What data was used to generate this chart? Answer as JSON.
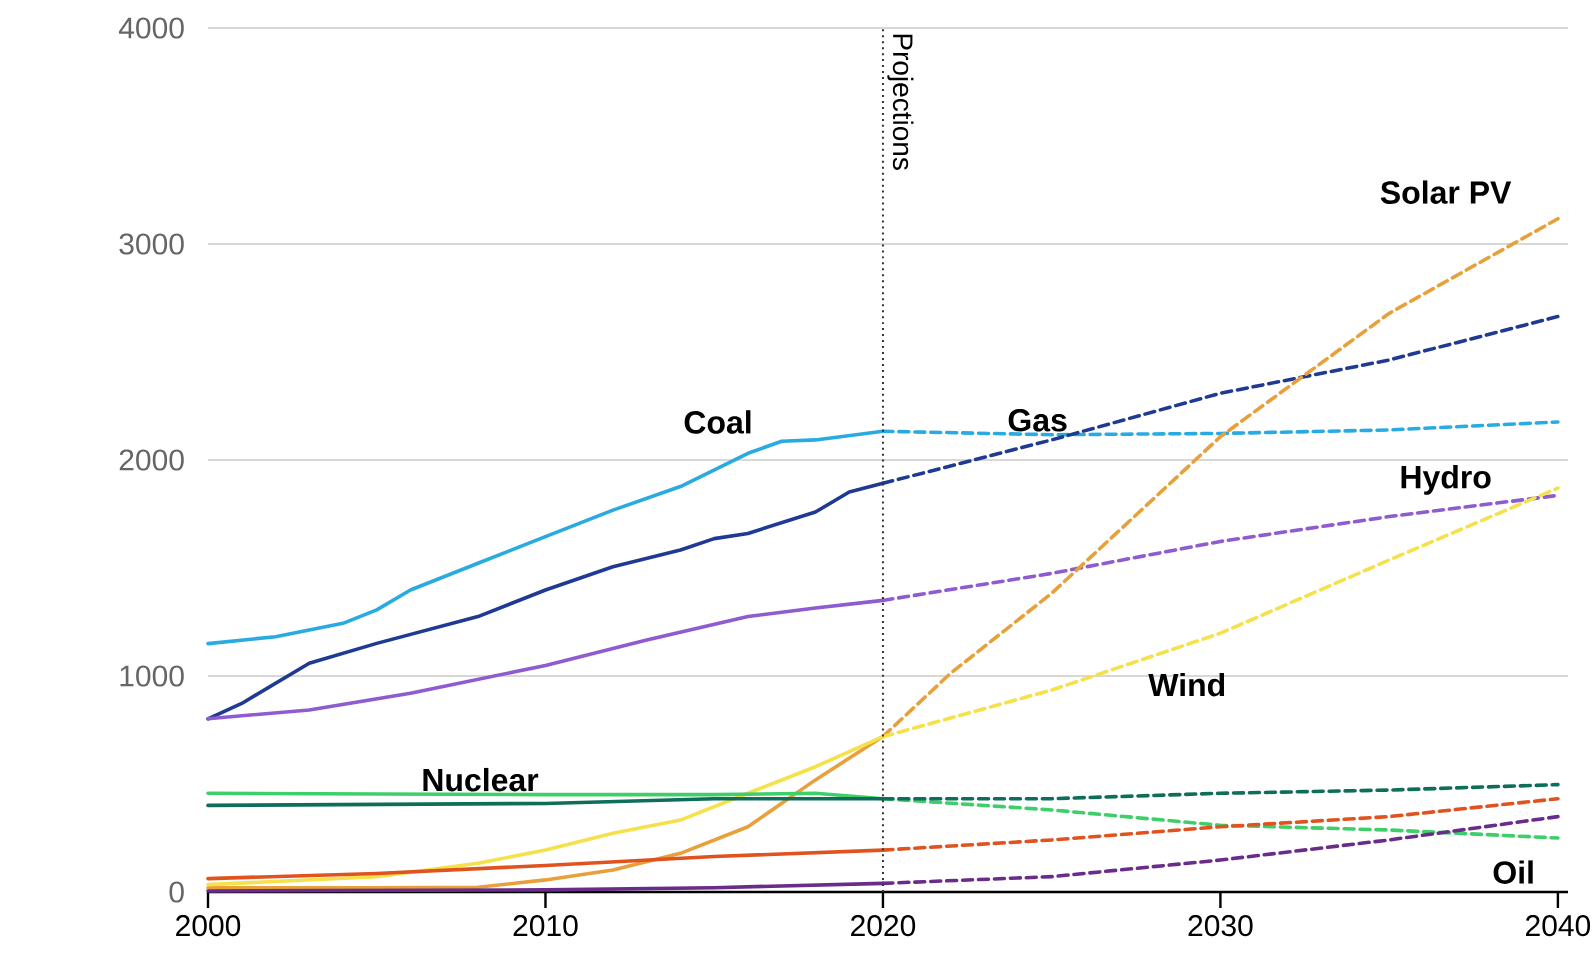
{
  "chart_data": {
    "type": "line",
    "xlim": [
      2000,
      2040.3
    ],
    "ylim": [
      0,
      4000
    ],
    "xticks": [
      2000,
      2010,
      2020,
      2030,
      2040
    ],
    "yticks": [
      0,
      1000,
      2000,
      3000,
      4000
    ],
    "grid": "y",
    "marker": "none",
    "series": [
      {
        "color": "#29abe2",
        "line_style": "solid",
        "x": [
          2000,
          2002,
          2004,
          2005,
          2006,
          2008,
          2010,
          2012,
          2014,
          2016,
          2017,
          2018,
          2020
        ],
        "values": [
          1150,
          1182,
          1244,
          1306,
          1398,
          1522,
          1645,
          1768,
          1877,
          2031,
          2087,
          2093,
          2133
        ]
      },
      {
        "color": "#29abe2",
        "line_style": "dashed",
        "x": [
          2020,
          2025,
          2030,
          2035,
          2040
        ],
        "values": [
          2133,
          2117,
          2123,
          2139,
          2176
        ]
      },
      {
        "color": "#1f3a93",
        "line_style": "solid",
        "x": [
          2000,
          2001,
          2003,
          2005,
          2008,
          2010,
          2012,
          2014,
          2015,
          2016,
          2018,
          2019,
          2020
        ],
        "values": [
          802,
          873,
          1059,
          1151,
          1275,
          1398,
          1506,
          1583,
          1636,
          1660,
          1759,
          1852,
          1892
        ]
      },
      {
        "color": "#1f3a93",
        "line_style": "dashed",
        "x": [
          2020,
          2025,
          2030,
          2035,
          2040
        ],
        "values": [
          1892,
          2093,
          2309,
          2463,
          2664
        ]
      },
      {
        "color": "#8e5bd0",
        "line_style": "solid",
        "x": [
          2000,
          2003,
          2006,
          2010,
          2013,
          2016,
          2018,
          2020
        ],
        "values": [
          802,
          843,
          920,
          1049,
          1167,
          1275,
          1315,
          1350
        ]
      },
      {
        "color": "#8e5bd0",
        "line_style": "dashed",
        "x": [
          2020,
          2025,
          2030,
          2035,
          2040
        ],
        "values": [
          1350,
          1475,
          1623,
          1738,
          1836
        ]
      },
      {
        "color": "#e8a03a",
        "line_style": "solid",
        "x": [
          2000,
          2005,
          2008,
          2010,
          2012,
          2014,
          2016,
          2018,
          2020
        ],
        "values": [
          19,
          20,
          22,
          56,
          102,
          179,
          302,
          519,
          720
        ]
      },
      {
        "color": "#e8a03a",
        "line_style": "dashed",
        "x": [
          2020,
          2022,
          2025,
          2030,
          2035,
          2040
        ],
        "values": [
          720,
          1012,
          1383,
          2108,
          2679,
          3117
        ]
      },
      {
        "color": "#f5e14a",
        "line_style": "solid",
        "x": [
          2000,
          2005,
          2008,
          2010,
          2012,
          2014,
          2016,
          2018,
          2020
        ],
        "values": [
          34,
          71,
          133,
          194,
          272,
          333,
          457,
          580,
          719
        ]
      },
      {
        "color": "#f5e14a",
        "line_style": "dashed",
        "x": [
          2020,
          2025,
          2030,
          2035,
          2040
        ],
        "values": [
          719,
          935,
          1198,
          1537,
          1870
        ]
      },
      {
        "color": "#3ecf6a",
        "line_style": "solid",
        "x": [
          2000,
          2010,
          2015,
          2018,
          2020
        ],
        "values": [
          457,
          451,
          451,
          457,
          432
        ]
      },
      {
        "color": "#3ecf6a",
        "line_style": "dashed",
        "x": [
          2020,
          2025,
          2030,
          2035,
          2040
        ],
        "values": [
          432,
          380,
          309,
          287,
          250
        ]
      },
      {
        "color": "#0f6e5a",
        "line_style": "solid",
        "x": [
          2000,
          2010,
          2015,
          2020
        ],
        "values": [
          401,
          410,
          432,
          432
        ]
      },
      {
        "color": "#0f6e5a",
        "line_style": "dashed",
        "x": [
          2020,
          2025,
          2030,
          2035,
          2040
        ],
        "values": [
          432,
          432,
          457,
          472,
          497
        ]
      },
      {
        "color": "#e0531f",
        "line_style": "solid",
        "x": [
          2000,
          2005,
          2010,
          2015,
          2020
        ],
        "values": [
          62,
          86,
          123,
          164,
          194
        ]
      },
      {
        "color": "#e0531f",
        "line_style": "dashed",
        "x": [
          2020,
          2025,
          2030,
          2035,
          2040
        ],
        "values": [
          194,
          241,
          302,
          349,
          432
        ]
      },
      {
        "color": "#6a2c8a",
        "line_style": "solid",
        "x": [
          2000,
          2010,
          2015,
          2020
        ],
        "values": [
          5,
          10,
          20,
          40
        ]
      },
      {
        "color": "#6a2c8a",
        "line_style": "dashed",
        "x": [
          2020,
          2025,
          2030,
          2035,
          2040
        ],
        "values": [
          40,
          71,
          148,
          241,
          349
        ]
      }
    ],
    "ref_lines": [
      {
        "axis": "x",
        "value": 2020,
        "label": "Projections",
        "line_style": "dotted",
        "color": "#333333"
      }
    ],
    "annotations": [
      "Coal",
      "Gas",
      "Solar PV",
      "Hydro",
      "Wind",
      "Nuclear",
      "Oil"
    ]
  }
}
